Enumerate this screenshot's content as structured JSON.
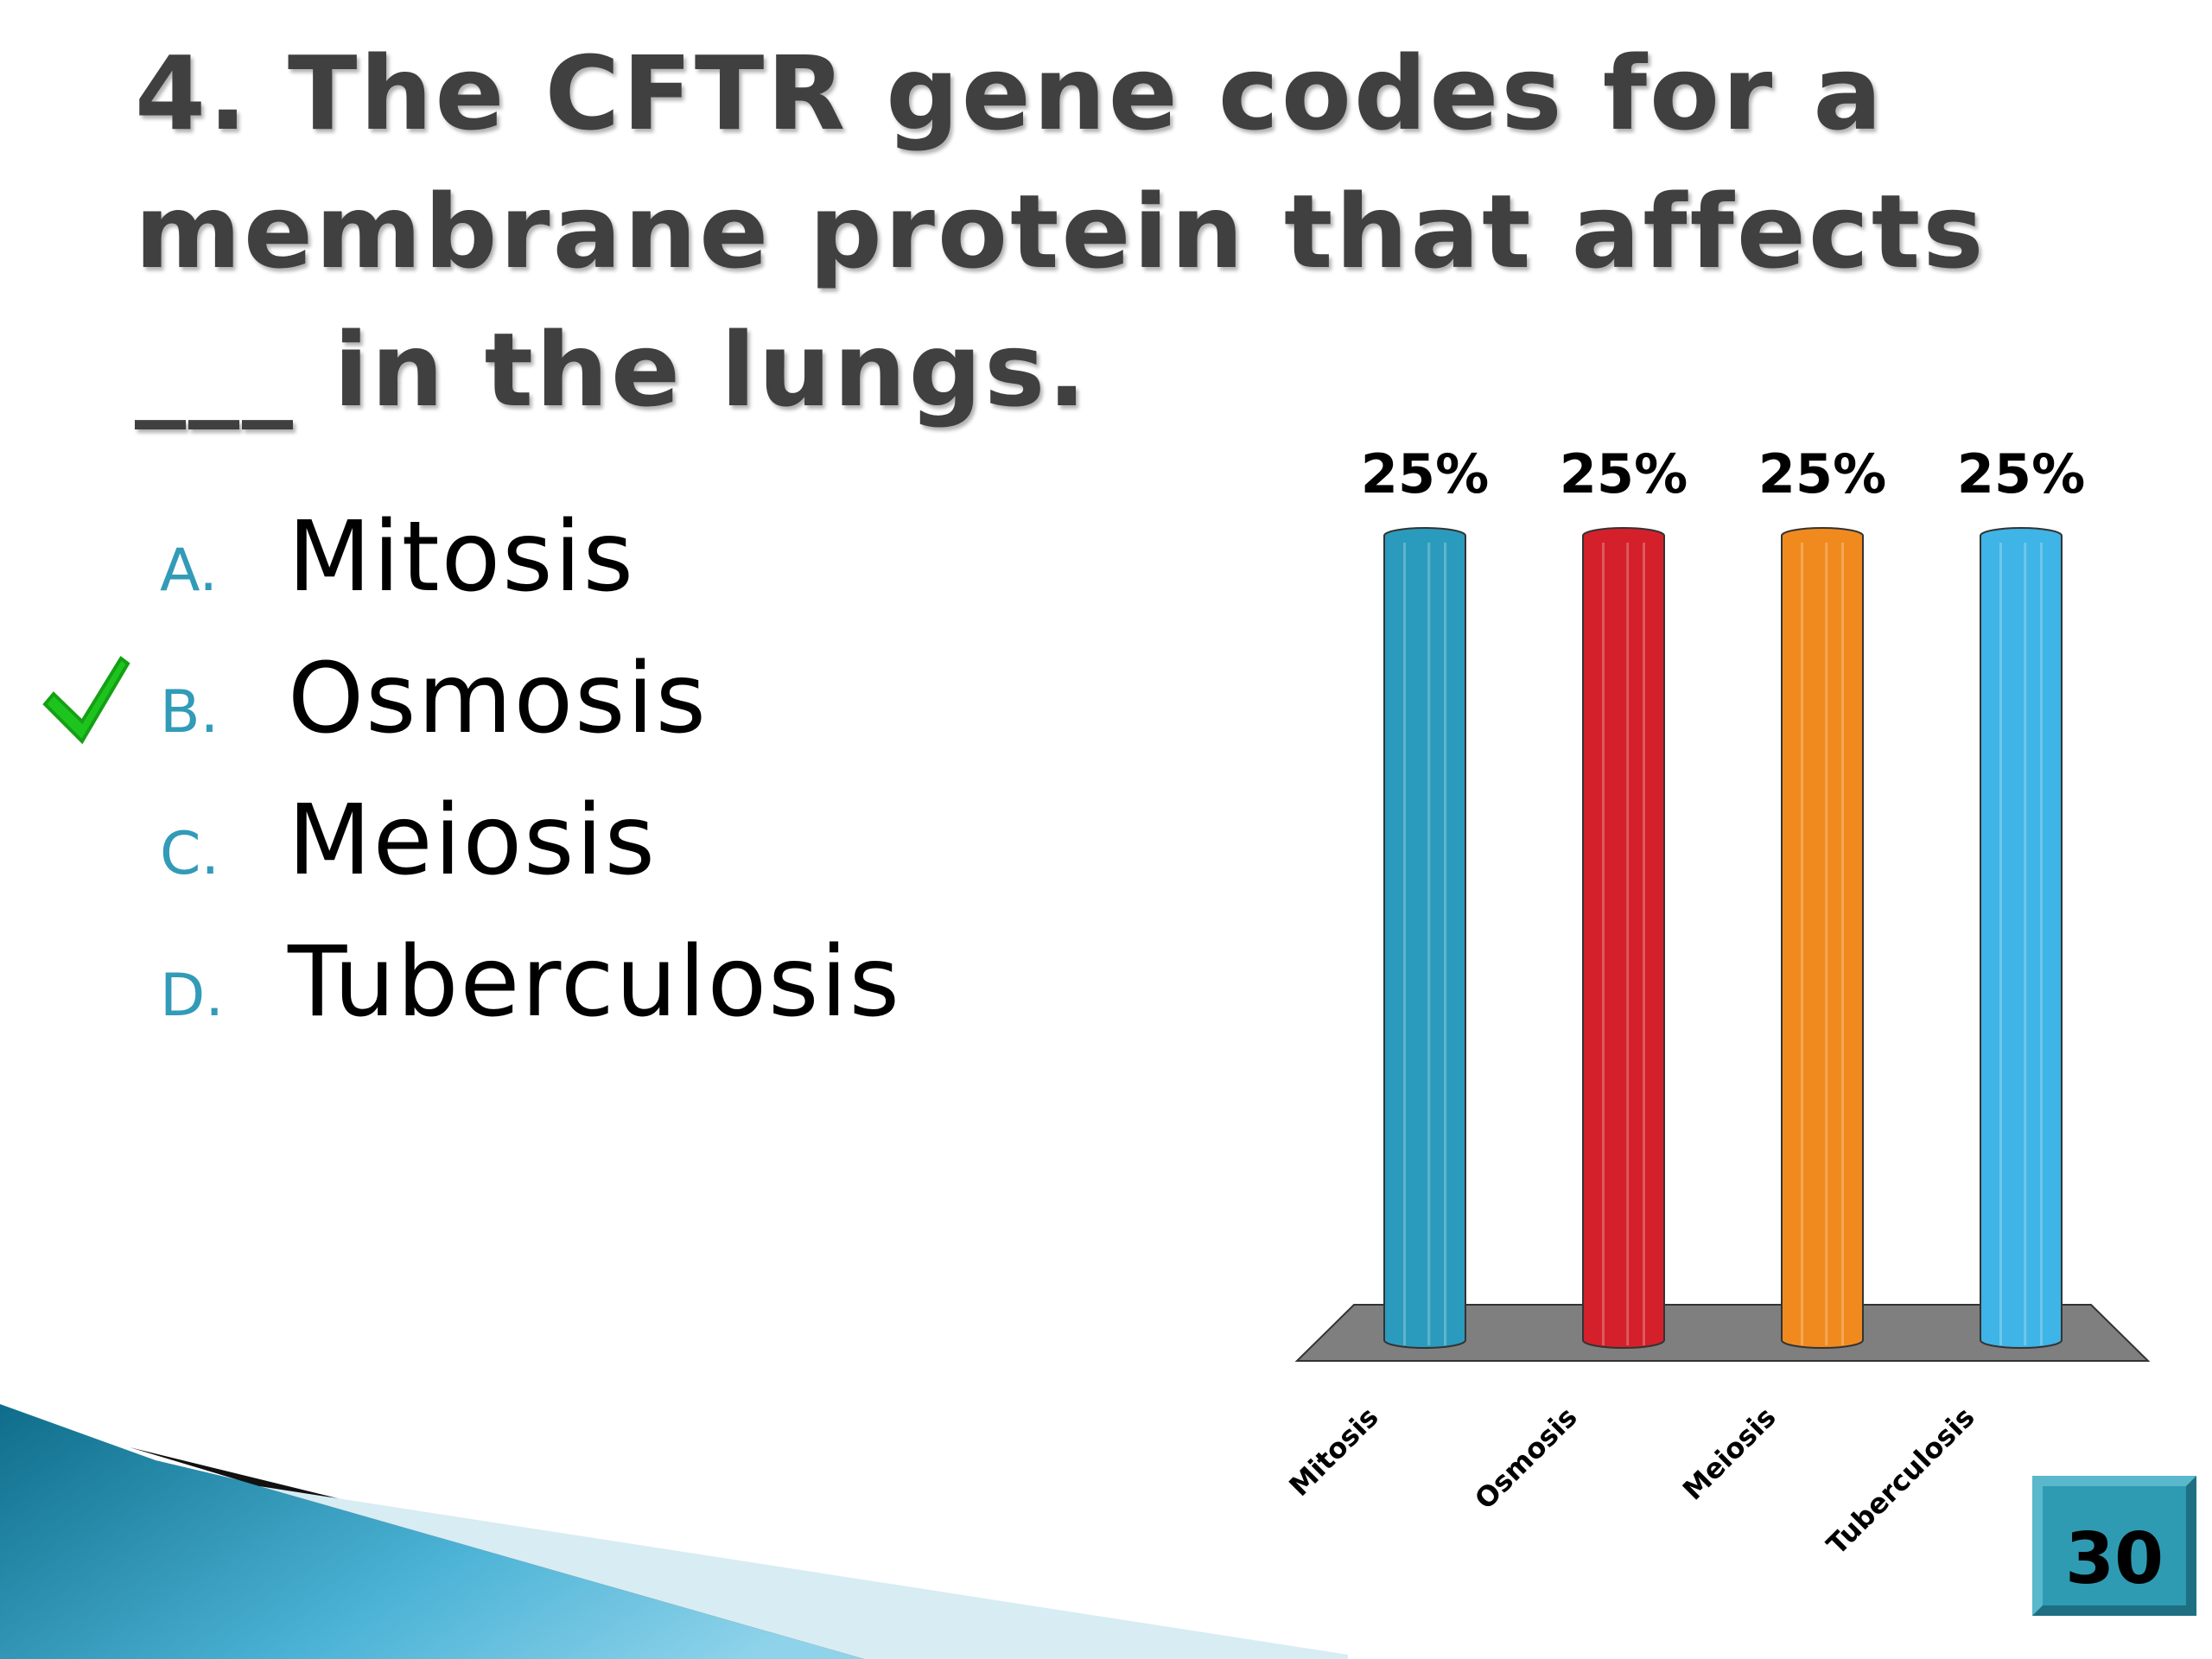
{
  "title": "4. The CFTR gene codes for a membrane protein that affects ___ in the lungs.",
  "options": [
    {
      "letter": "A.",
      "text": "Mitosis"
    },
    {
      "letter": "B.",
      "text": "Osmosis"
    },
    {
      "letter": "C.",
      "text": "Meiosis"
    },
    {
      "letter": "D.",
      "text": "Tuberculosis"
    }
  ],
  "chart_data": {
    "type": "bar",
    "categories": [
      "Mitosis",
      "Osmosis",
      "Meiosis",
      "Tuberculosis"
    ],
    "values": [
      25,
      25,
      25,
      25
    ],
    "value_labels": [
      "25%",
      "25%",
      "25%",
      "25%"
    ],
    "colors": [
      "#2b9bbd",
      "#d4202a",
      "#f18a1e",
      "#3fb4e6"
    ]
  },
  "timer": "30"
}
